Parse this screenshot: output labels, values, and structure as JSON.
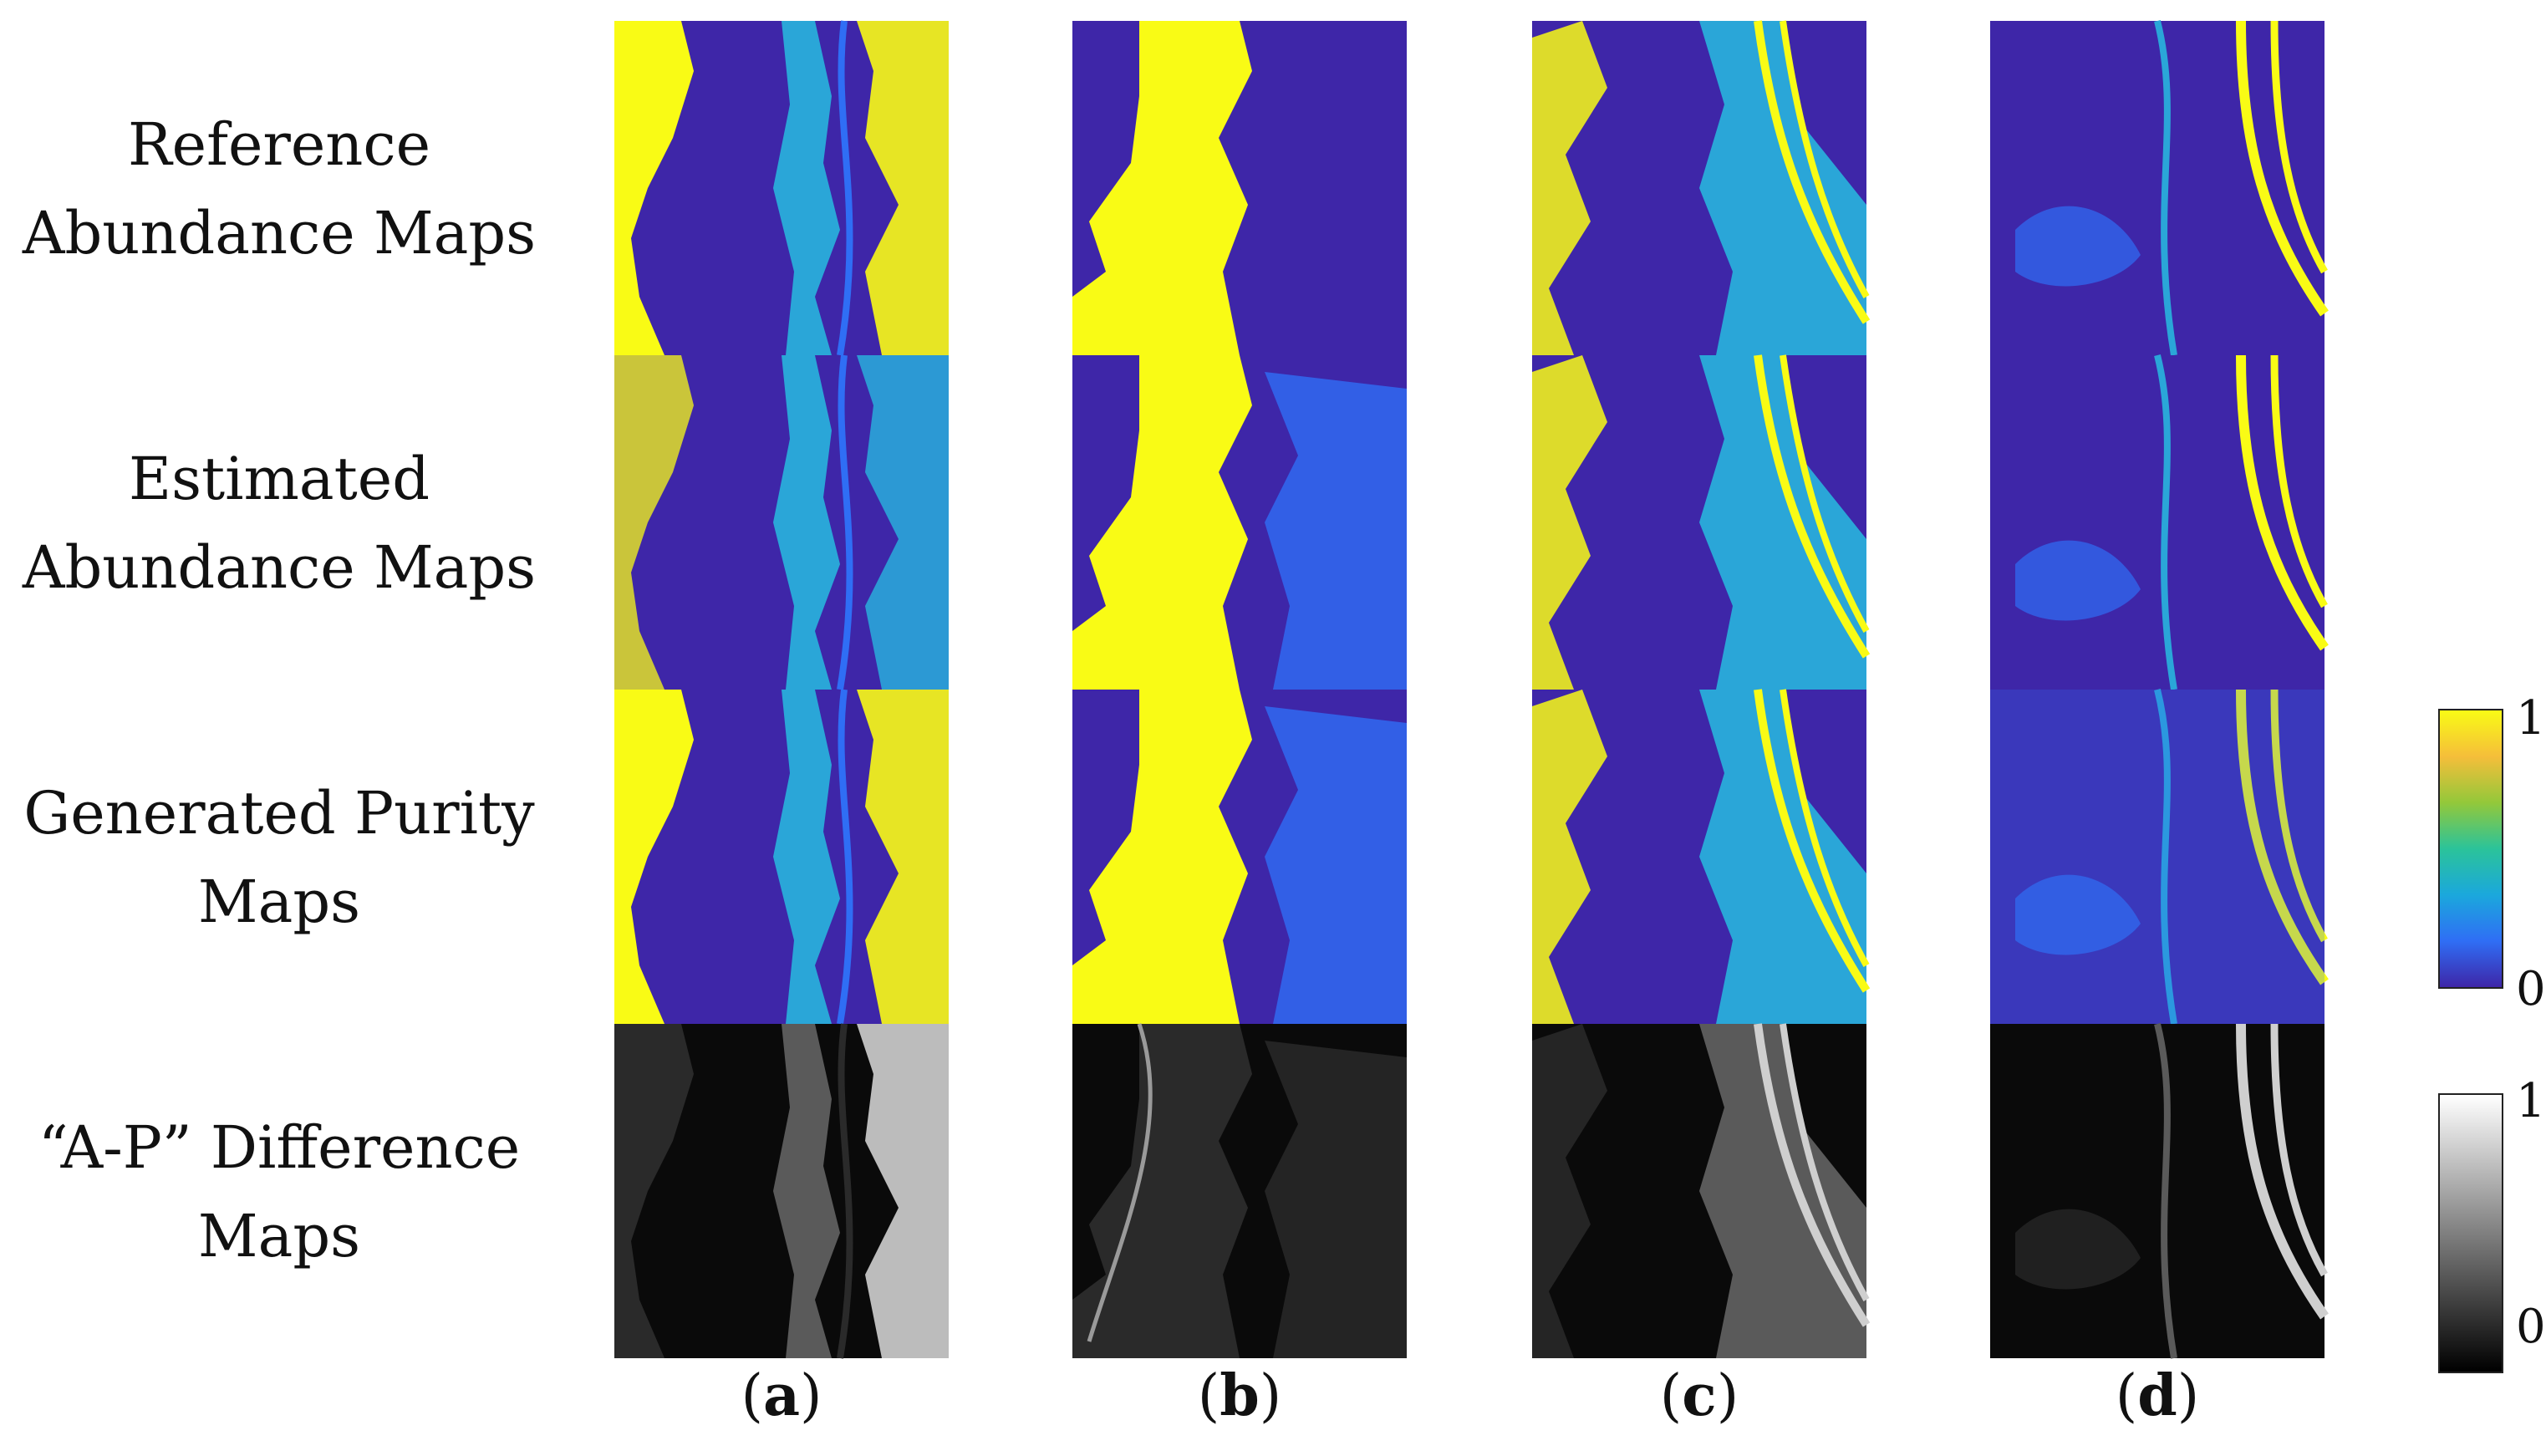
{
  "rows": [
    {
      "id": "reference",
      "lines": [
        "Reference",
        "Abundance Maps"
      ]
    },
    {
      "id": "estimated",
      "lines": [
        "Estimated",
        "Abundance Maps"
      ]
    },
    {
      "id": "purity",
      "lines": [
        "Generated Purity",
        "Maps"
      ]
    },
    {
      "id": "difference",
      "lines": [
        "“A-P” Difference",
        "Maps"
      ]
    }
  ],
  "columns": [
    {
      "open": "(",
      "letter": "a",
      "close": ")"
    },
    {
      "open": "(",
      "letter": "b",
      "close": ")"
    },
    {
      "open": "(",
      "letter": "c",
      "close": ")"
    },
    {
      "open": "(",
      "letter": "d",
      "close": ")"
    }
  ],
  "colorbar_jet": {
    "max": "1",
    "min": "0",
    "colors": [
      "#3e26a8",
      "#2f6ef5",
      "#1ba8dc",
      "#2bc39a",
      "#93c83a",
      "#f5be3a",
      "#f9fb15"
    ]
  },
  "colorbar_gray": {
    "max": "1",
    "min": "0",
    "colors": [
      "#000000",
      "#ffffff"
    ]
  },
  "palette": {
    "background": "#3e26a8",
    "bright": "#f9fb15",
    "mid": "#2aa6d8",
    "low": "#2f6ef5",
    "diff_bg": "#0a0a0a"
  }
}
